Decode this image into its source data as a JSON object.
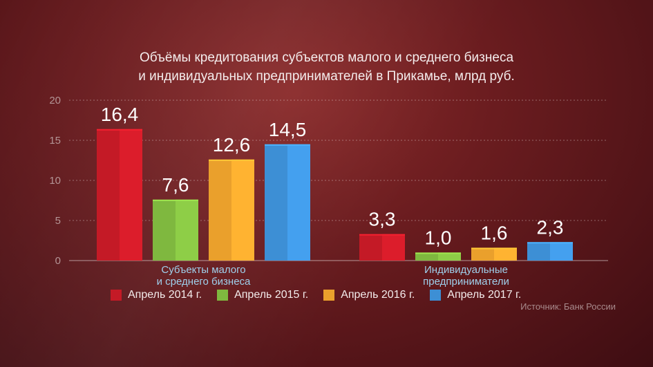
{
  "title_lines": [
    "Объёмы кредитования субъектов малого и среднего бизнеса",
    "и индивидуальных предпринимателей в Прикамье, млрд руб."
  ],
  "source": "Источник: Банк России",
  "colors": {
    "april_2014": "#c41a26",
    "april_2015": "#7fb83f",
    "april_2016": "#eaa02c",
    "april_2017": "#3d8fd5",
    "category_label": "#9fd0ec"
  },
  "chart_data": {
    "type": "bar",
    "title": "Объёмы кредитования субъектов малого и среднего бизнеса и индивидуальных предпринимателей в Прикамье, млрд руб.",
    "categories": [
      [
        "Субъекты малого",
        "и среднего бизнеса"
      ],
      [
        "Индивидуальные",
        "предприниматели"
      ]
    ],
    "series": [
      {
        "name": "Апрель 2014 г.",
        "values": [
          16.4,
          3.3
        ],
        "labels": [
          "16,4",
          "3,3"
        ]
      },
      {
        "name": "Апрель 2015 г.",
        "values": [
          7.6,
          1.0
        ],
        "labels": [
          "7,6",
          "1,0"
        ]
      },
      {
        "name": "Апрель 2016 г.",
        "values": [
          12.6,
          1.6
        ],
        "labels": [
          "12,6",
          "1,6"
        ]
      },
      {
        "name": "Апрель 2017 г.",
        "values": [
          14.5,
          2.3
        ],
        "labels": [
          "14,5",
          "2,3"
        ]
      }
    ],
    "yticks": [
      "0",
      "5",
      "10",
      "15",
      "20"
    ],
    "ylim": [
      0,
      20
    ],
    "grid": true,
    "legend": "bottom"
  }
}
